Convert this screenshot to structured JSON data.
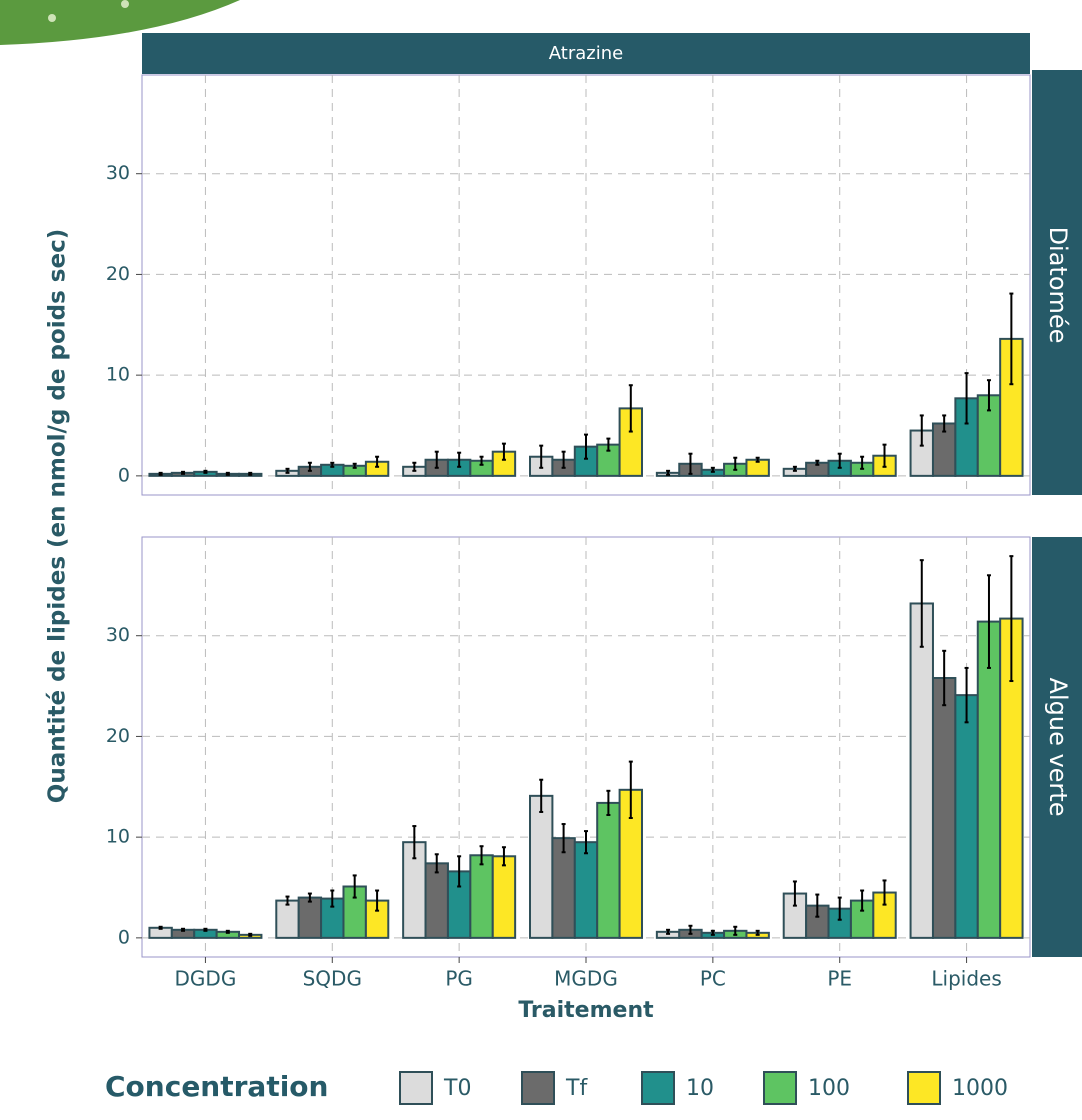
{
  "chart_data": {
    "type": "bar",
    "title": "Atrazine",
    "x_label": "Traitement",
    "y_label": "Quantité de lipides (en nmol/g de poids sec)",
    "legend_title": "Concentration",
    "grid": true,
    "categories": [
      "DGDG",
      "SQDG",
      "PG",
      "MGDG",
      "PC",
      "PE",
      "Lipides"
    ],
    "series": [
      {
        "name": "T0",
        "color": "#dcdcdc"
      },
      {
        "name": "Tf",
        "color": "#6b6b6b"
      },
      {
        "name": "10",
        "color": "#21908c"
      },
      {
        "name": "100",
        "color": "#5ec462"
      },
      {
        "name": "1000",
        "color": "#fde725"
      }
    ],
    "ylim": [
      -1.9,
      39.8
    ],
    "yticks": [
      0,
      10,
      20,
      30
    ],
    "facets": [
      {
        "label": "Diatomée",
        "series": [
          {
            "values": [
              0.2,
              0.5,
              0.9,
              1.9,
              0.3,
              0.7,
              4.5
            ],
            "errors": [
              0.1,
              0.2,
              0.4,
              1.1,
              0.2,
              0.2,
              1.5
            ]
          },
          {
            "values": [
              0.3,
              0.9,
              1.6,
              1.6,
              1.2,
              1.3,
              5.2
            ],
            "errors": [
              0.1,
              0.4,
              0.8,
              0.8,
              1.0,
              0.2,
              0.8
            ]
          },
          {
            "values": [
              0.4,
              1.1,
              1.6,
              2.9,
              0.6,
              1.5,
              7.7
            ],
            "errors": [
              0.1,
              0.2,
              0.7,
              1.2,
              0.2,
              0.7,
              2.5
            ]
          },
          {
            "values": [
              0.2,
              1.0,
              1.5,
              3.1,
              1.2,
              1.3,
              8.0
            ],
            "errors": [
              0.1,
              0.2,
              0.4,
              0.6,
              0.6,
              0.6,
              1.5
            ]
          },
          {
            "values": [
              0.2,
              1.4,
              2.4,
              6.7,
              1.6,
              2.0,
              13.6
            ],
            "errors": [
              0.1,
              0.5,
              0.8,
              2.3,
              0.2,
              1.1,
              4.5
            ]
          }
        ]
      },
      {
        "label": "Algue verte",
        "series": [
          {
            "values": [
              1.0,
              3.7,
              9.5,
              14.1,
              0.6,
              4.4,
              33.2
            ],
            "errors": [
              0.1,
              0.4,
              1.6,
              1.6,
              0.2,
              1.2,
              4.3
            ]
          },
          {
            "values": [
              0.8,
              4.0,
              7.4,
              9.9,
              0.8,
              3.2,
              25.8
            ],
            "errors": [
              0.1,
              0.4,
              0.9,
              1.4,
              0.4,
              1.1,
              2.7
            ]
          },
          {
            "values": [
              0.8,
              3.9,
              6.6,
              9.5,
              0.5,
              2.9,
              24.1
            ],
            "errors": [
              0.1,
              0.8,
              1.5,
              1.1,
              0.2,
              1.1,
              2.7
            ]
          },
          {
            "values": [
              0.6,
              5.1,
              8.2,
              13.4,
              0.7,
              3.7,
              31.4
            ],
            "errors": [
              0.1,
              1.1,
              0.9,
              1.2,
              0.4,
              1.0,
              4.6
            ]
          },
          {
            "values": [
              0.3,
              3.7,
              8.1,
              14.7,
              0.5,
              4.5,
              31.7
            ],
            "errors": [
              0.1,
              1.0,
              0.9,
              2.8,
              0.2,
              1.2,
              6.2
            ]
          }
        ]
      }
    ]
  }
}
